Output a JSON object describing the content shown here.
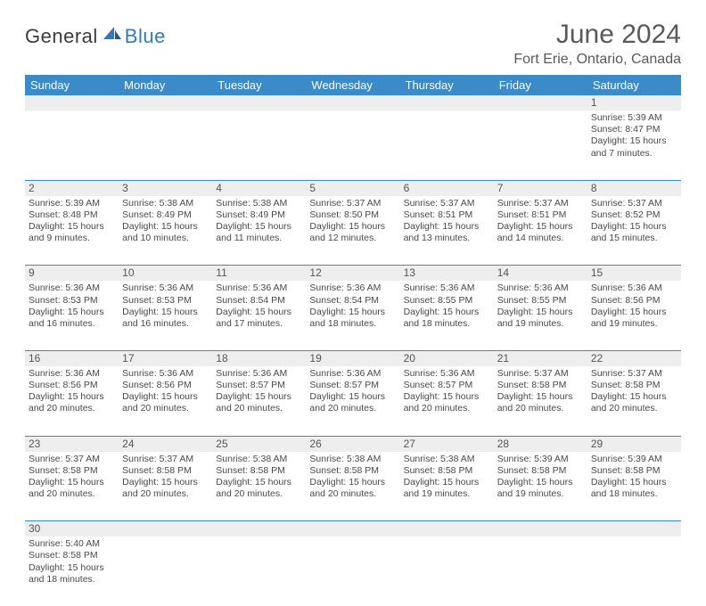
{
  "logo": {
    "text1": "General",
    "text2": "Blue",
    "shape_color": "#2f7bbf"
  },
  "title": "June 2024",
  "subtitle": "Fort Erie, Ontario, Canada",
  "colors": {
    "header_bg": "#3b8bc8",
    "header_text": "#ffffff",
    "daterow_bg": "#eeeeee",
    "cell_border": "#3b8bc8",
    "body_text": "#4a4a4a"
  },
  "weekdays": [
    "Sunday",
    "Monday",
    "Tuesday",
    "Wednesday",
    "Thursday",
    "Friday",
    "Saturday"
  ],
  "weeks": [
    [
      null,
      null,
      null,
      null,
      null,
      null,
      {
        "n": "1",
        "sr": "Sunrise: 5:39 AM",
        "ss": "Sunset: 8:47 PM",
        "d1": "Daylight: 15 hours",
        "d2": "and 7 minutes."
      }
    ],
    [
      {
        "n": "2",
        "sr": "Sunrise: 5:39 AM",
        "ss": "Sunset: 8:48 PM",
        "d1": "Daylight: 15 hours",
        "d2": "and 9 minutes."
      },
      {
        "n": "3",
        "sr": "Sunrise: 5:38 AM",
        "ss": "Sunset: 8:49 PM",
        "d1": "Daylight: 15 hours",
        "d2": "and 10 minutes."
      },
      {
        "n": "4",
        "sr": "Sunrise: 5:38 AM",
        "ss": "Sunset: 8:49 PM",
        "d1": "Daylight: 15 hours",
        "d2": "and 11 minutes."
      },
      {
        "n": "5",
        "sr": "Sunrise: 5:37 AM",
        "ss": "Sunset: 8:50 PM",
        "d1": "Daylight: 15 hours",
        "d2": "and 12 minutes."
      },
      {
        "n": "6",
        "sr": "Sunrise: 5:37 AM",
        "ss": "Sunset: 8:51 PM",
        "d1": "Daylight: 15 hours",
        "d2": "and 13 minutes."
      },
      {
        "n": "7",
        "sr": "Sunrise: 5:37 AM",
        "ss": "Sunset: 8:51 PM",
        "d1": "Daylight: 15 hours",
        "d2": "and 14 minutes."
      },
      {
        "n": "8",
        "sr": "Sunrise: 5:37 AM",
        "ss": "Sunset: 8:52 PM",
        "d1": "Daylight: 15 hours",
        "d2": "and 15 minutes."
      }
    ],
    [
      {
        "n": "9",
        "sr": "Sunrise: 5:36 AM",
        "ss": "Sunset: 8:53 PM",
        "d1": "Daylight: 15 hours",
        "d2": "and 16 minutes."
      },
      {
        "n": "10",
        "sr": "Sunrise: 5:36 AM",
        "ss": "Sunset: 8:53 PM",
        "d1": "Daylight: 15 hours",
        "d2": "and 16 minutes."
      },
      {
        "n": "11",
        "sr": "Sunrise: 5:36 AM",
        "ss": "Sunset: 8:54 PM",
        "d1": "Daylight: 15 hours",
        "d2": "and 17 minutes."
      },
      {
        "n": "12",
        "sr": "Sunrise: 5:36 AM",
        "ss": "Sunset: 8:54 PM",
        "d1": "Daylight: 15 hours",
        "d2": "and 18 minutes."
      },
      {
        "n": "13",
        "sr": "Sunrise: 5:36 AM",
        "ss": "Sunset: 8:55 PM",
        "d1": "Daylight: 15 hours",
        "d2": "and 18 minutes."
      },
      {
        "n": "14",
        "sr": "Sunrise: 5:36 AM",
        "ss": "Sunset: 8:55 PM",
        "d1": "Daylight: 15 hours",
        "d2": "and 19 minutes."
      },
      {
        "n": "15",
        "sr": "Sunrise: 5:36 AM",
        "ss": "Sunset: 8:56 PM",
        "d1": "Daylight: 15 hours",
        "d2": "and 19 minutes."
      }
    ],
    [
      {
        "n": "16",
        "sr": "Sunrise: 5:36 AM",
        "ss": "Sunset: 8:56 PM",
        "d1": "Daylight: 15 hours",
        "d2": "and 20 minutes."
      },
      {
        "n": "17",
        "sr": "Sunrise: 5:36 AM",
        "ss": "Sunset: 8:56 PM",
        "d1": "Daylight: 15 hours",
        "d2": "and 20 minutes."
      },
      {
        "n": "18",
        "sr": "Sunrise: 5:36 AM",
        "ss": "Sunset: 8:57 PM",
        "d1": "Daylight: 15 hours",
        "d2": "and 20 minutes."
      },
      {
        "n": "19",
        "sr": "Sunrise: 5:36 AM",
        "ss": "Sunset: 8:57 PM",
        "d1": "Daylight: 15 hours",
        "d2": "and 20 minutes."
      },
      {
        "n": "20",
        "sr": "Sunrise: 5:36 AM",
        "ss": "Sunset: 8:57 PM",
        "d1": "Daylight: 15 hours",
        "d2": "and 20 minutes."
      },
      {
        "n": "21",
        "sr": "Sunrise: 5:37 AM",
        "ss": "Sunset: 8:58 PM",
        "d1": "Daylight: 15 hours",
        "d2": "and 20 minutes."
      },
      {
        "n": "22",
        "sr": "Sunrise: 5:37 AM",
        "ss": "Sunset: 8:58 PM",
        "d1": "Daylight: 15 hours",
        "d2": "and 20 minutes."
      }
    ],
    [
      {
        "n": "23",
        "sr": "Sunrise: 5:37 AM",
        "ss": "Sunset: 8:58 PM",
        "d1": "Daylight: 15 hours",
        "d2": "and 20 minutes."
      },
      {
        "n": "24",
        "sr": "Sunrise: 5:37 AM",
        "ss": "Sunset: 8:58 PM",
        "d1": "Daylight: 15 hours",
        "d2": "and 20 minutes."
      },
      {
        "n": "25",
        "sr": "Sunrise: 5:38 AM",
        "ss": "Sunset: 8:58 PM",
        "d1": "Daylight: 15 hours",
        "d2": "and 20 minutes."
      },
      {
        "n": "26",
        "sr": "Sunrise: 5:38 AM",
        "ss": "Sunset: 8:58 PM",
        "d1": "Daylight: 15 hours",
        "d2": "and 20 minutes."
      },
      {
        "n": "27",
        "sr": "Sunrise: 5:38 AM",
        "ss": "Sunset: 8:58 PM",
        "d1": "Daylight: 15 hours",
        "d2": "and 19 minutes."
      },
      {
        "n": "28",
        "sr": "Sunrise: 5:39 AM",
        "ss": "Sunset: 8:58 PM",
        "d1": "Daylight: 15 hours",
        "d2": "and 19 minutes."
      },
      {
        "n": "29",
        "sr": "Sunrise: 5:39 AM",
        "ss": "Sunset: 8:58 PM",
        "d1": "Daylight: 15 hours",
        "d2": "and 18 minutes."
      }
    ],
    [
      {
        "n": "30",
        "sr": "Sunrise: 5:40 AM",
        "ss": "Sunset: 8:58 PM",
        "d1": "Daylight: 15 hours",
        "d2": "and 18 minutes."
      },
      null,
      null,
      null,
      null,
      null,
      null
    ]
  ]
}
